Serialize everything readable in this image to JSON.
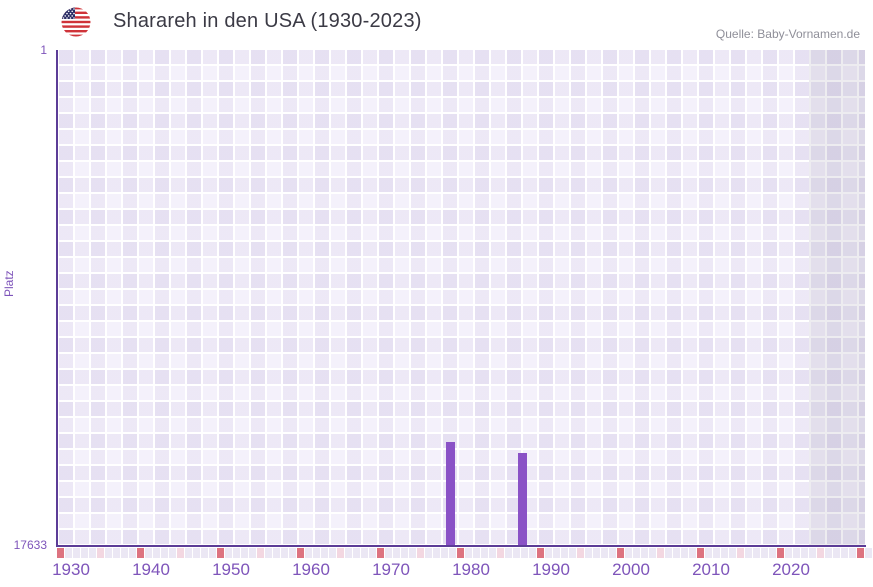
{
  "header": {
    "title": "Sharareh in den USA (1930-2023)",
    "flag_icon": "us-flag-round-icon",
    "source": "Quelle: Baby-Vornamen.de"
  },
  "chart_data": {
    "type": "bar",
    "title": "Sharareh in den USA (1930-2023)",
    "xlabel": "",
    "ylabel": "Platz",
    "x_axis": {
      "start_year": 1930,
      "end_year": 2023,
      "grid_end_year": 2031,
      "tick_labels": [
        "1930",
        "1940",
        "1950",
        "1960",
        "1970",
        "1980",
        "1990",
        "2000",
        "2010",
        "2020"
      ],
      "tick_interval_years": 10,
      "half_decade_marker_interval_years": 5
    },
    "y_axis": {
      "label": "Platz",
      "top_tick": "1",
      "bottom_tick": "17633",
      "min": 1,
      "max": 17633,
      "inverted": true
    },
    "series": [
      {
        "name": "Platz",
        "points": [
          {
            "year": 1978,
            "rank": 13950
          },
          {
            "year": 1987,
            "rank": 14330
          }
        ]
      }
    ],
    "legend": "none",
    "grid": "checkered",
    "colors": {
      "bar": "#8a52c6",
      "axis_line": "#5c3c97",
      "tick_label": "#7e54ba",
      "decade_marker": "#dd7380",
      "half_decade_marker": "#f3d7e1",
      "marker_strip_cell": "#ebe7f4",
      "grid_base": "#f4f1fb",
      "future_band_tint": "rgba(82,72,112,0.10)",
      "title_text": "#3b3a45",
      "source_text": "#8f8f99"
    }
  }
}
